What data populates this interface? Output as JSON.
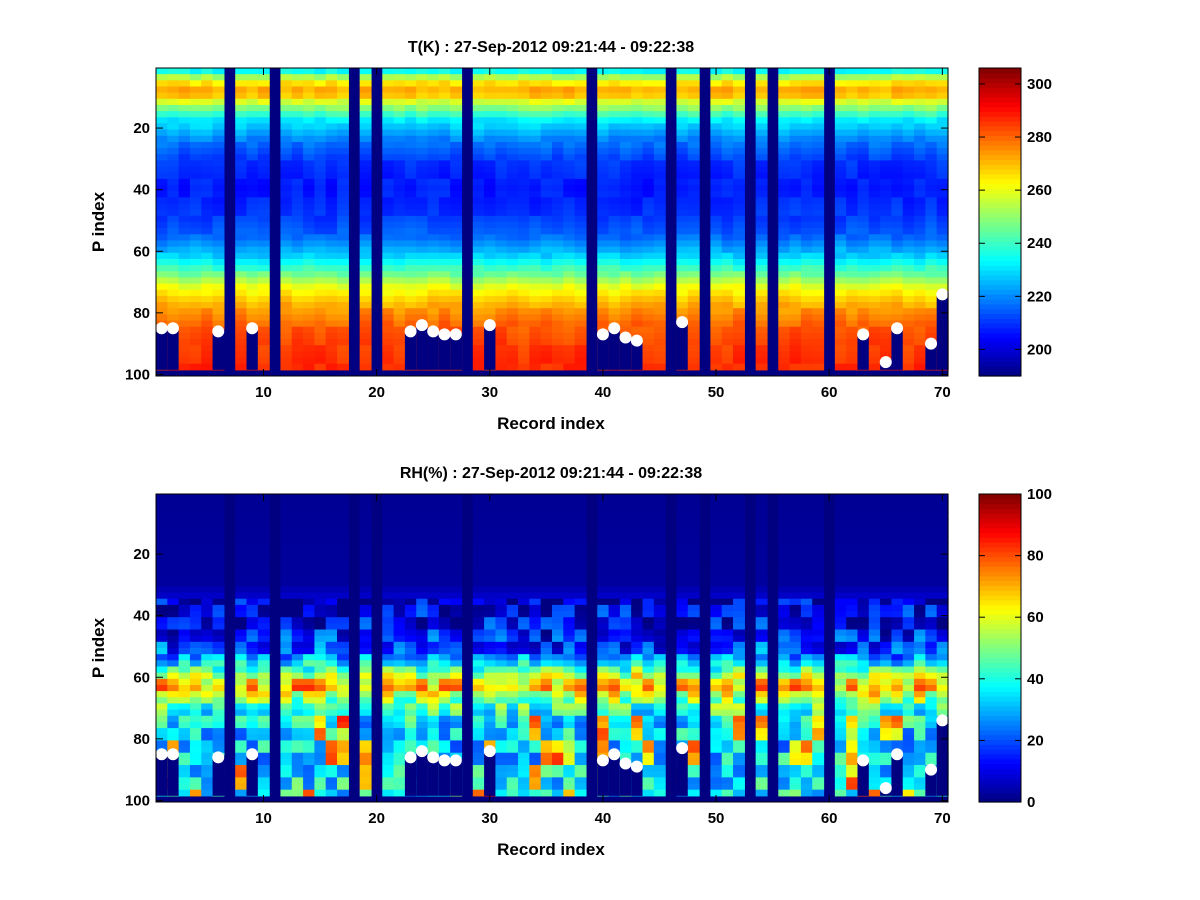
{
  "chart_data": [
    {
      "type": "heatmap",
      "id": "temp",
      "title": "T(K) : 27-Sep-2012 09:21:44 - 09:22:38",
      "xlabel": "Record index",
      "ylabel": "P index",
      "xlim": [
        0.5,
        70.5
      ],
      "ylim": [
        0.5,
        100.5
      ],
      "y_reversed": true,
      "xticks": [
        10,
        20,
        30,
        40,
        50,
        60,
        70
      ],
      "yticks": [
        20,
        40,
        60,
        80,
        100
      ],
      "colormap": "jet",
      "clim": [
        190,
        306
      ],
      "colorbar_ticks": [
        200,
        220,
        240,
        260,
        280,
        300
      ],
      "missing_records": [
        7,
        11,
        18,
        20,
        28,
        39,
        46,
        49,
        53,
        55,
        60
      ],
      "profile_bottom_index": 98,
      "profile_levels": [
        {
          "p": 1,
          "value": 225
        },
        {
          "p": 5,
          "value": 262
        },
        {
          "p": 9,
          "value": 275
        },
        {
          "p": 12,
          "value": 258
        },
        {
          "p": 18,
          "value": 232
        },
        {
          "p": 25,
          "value": 218
        },
        {
          "p": 32,
          "value": 210
        },
        {
          "p": 40,
          "value": 207
        },
        {
          "p": 48,
          "value": 210
        },
        {
          "p": 55,
          "value": 215
        },
        {
          "p": 62,
          "value": 228
        },
        {
          "p": 68,
          "value": 246
        },
        {
          "p": 72,
          "value": 260
        },
        {
          "p": 76,
          "value": 268
        },
        {
          "p": 80,
          "value": 275
        },
        {
          "p": 86,
          "value": 282
        },
        {
          "p": 92,
          "value": 285
        },
        {
          "p": 98,
          "value": 287
        }
      ],
      "surface_markers": [
        {
          "record": 1,
          "p": 85
        },
        {
          "record": 2,
          "p": 85
        },
        {
          "record": 6,
          "p": 86
        },
        {
          "record": 9,
          "p": 85
        },
        {
          "record": 23,
          "p": 86
        },
        {
          "record": 24,
          "p": 84
        },
        {
          "record": 25,
          "p": 86
        },
        {
          "record": 26,
          "p": 87
        },
        {
          "record": 27,
          "p": 87
        },
        {
          "record": 30,
          "p": 84
        },
        {
          "record": 40,
          "p": 87
        },
        {
          "record": 41,
          "p": 85
        },
        {
          "record": 42,
          "p": 88
        },
        {
          "record": 43,
          "p": 89
        },
        {
          "record": 47,
          "p": 83
        },
        {
          "record": 63,
          "p": 87
        },
        {
          "record": 65,
          "p": 96
        },
        {
          "record": 66,
          "p": 85
        },
        {
          "record": 69,
          "p": 90
        },
        {
          "record": 70,
          "p": 74
        }
      ]
    },
    {
      "type": "heatmap",
      "id": "rh",
      "title": "RH(%) : 27-Sep-2012 09:21:44 - 09:22:38",
      "xlabel": "Record index",
      "ylabel": "P index",
      "xlim": [
        0.5,
        70.5
      ],
      "ylim": [
        0.5,
        100.5
      ],
      "y_reversed": true,
      "xticks": [
        10,
        20,
        30,
        40,
        50,
        60,
        70
      ],
      "yticks": [
        20,
        40,
        60,
        80,
        100
      ],
      "colormap": "jet",
      "clim": [
        0,
        100
      ],
      "colorbar_ticks": [
        0,
        20,
        40,
        60,
        80,
        100
      ],
      "missing_records": [
        7,
        11,
        18,
        20,
        28,
        39,
        46,
        49,
        53,
        55,
        60
      ],
      "profile_bottom_index": 98,
      "profile_levels": [
        {
          "p": 1,
          "value": 2
        },
        {
          "p": 30,
          "value": 3
        },
        {
          "p": 34,
          "value": 7
        },
        {
          "p": 40,
          "value": 10
        },
        {
          "p": 46,
          "value": 13
        },
        {
          "p": 52,
          "value": 20
        },
        {
          "p": 57,
          "value": 40
        },
        {
          "p": 61,
          "value": 62
        },
        {
          "p": 64,
          "value": 70
        },
        {
          "p": 67,
          "value": 55
        },
        {
          "p": 71,
          "value": 42
        },
        {
          "p": 76,
          "value": 35
        },
        {
          "p": 82,
          "value": 33
        },
        {
          "p": 90,
          "value": 35
        },
        {
          "p": 98,
          "value": 38
        }
      ],
      "surface_markers": [
        {
          "record": 1,
          "p": 85
        },
        {
          "record": 2,
          "p": 85
        },
        {
          "record": 6,
          "p": 86
        },
        {
          "record": 9,
          "p": 85
        },
        {
          "record": 23,
          "p": 86
        },
        {
          "record": 24,
          "p": 84
        },
        {
          "record": 25,
          "p": 86
        },
        {
          "record": 26,
          "p": 87
        },
        {
          "record": 27,
          "p": 87
        },
        {
          "record": 30,
          "p": 84
        },
        {
          "record": 40,
          "p": 87
        },
        {
          "record": 41,
          "p": 85
        },
        {
          "record": 42,
          "p": 88
        },
        {
          "record": 43,
          "p": 89
        },
        {
          "record": 47,
          "p": 83
        },
        {
          "record": 63,
          "p": 87
        },
        {
          "record": 65,
          "p": 96
        },
        {
          "record": 66,
          "p": 85
        },
        {
          "record": 69,
          "p": 90
        },
        {
          "record": 70,
          "p": 74
        }
      ]
    }
  ]
}
